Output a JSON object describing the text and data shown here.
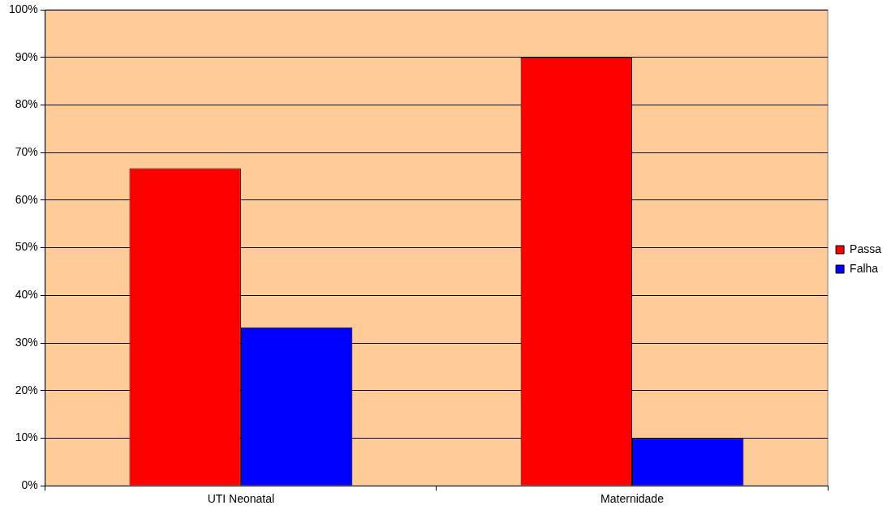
{
  "chart_data": {
    "type": "bar",
    "categories": [
      "UTI Neonatal",
      "Maternidade"
    ],
    "series": [
      {
        "name": "Passa",
        "color": "#ff0000",
        "values": [
          66.7,
          90
        ]
      },
      {
        "name": "Falha",
        "color": "#0000ff",
        "values": [
          33.3,
          10
        ]
      }
    ],
    "ylim": [
      0,
      100
    ],
    "yticks": [
      {
        "value": 0,
        "label": "0%"
      },
      {
        "value": 10,
        "label": "10%"
      },
      {
        "value": 20,
        "label": "20%"
      },
      {
        "value": 30,
        "label": "30%"
      },
      {
        "value": 40,
        "label": "40%"
      },
      {
        "value": 50,
        "label": "50%"
      },
      {
        "value": 60,
        "label": "60%"
      },
      {
        "value": 70,
        "label": "70%"
      },
      {
        "value": 80,
        "label": "80%"
      },
      {
        "value": 90,
        "label": "90%"
      },
      {
        "value": 100,
        "label": "100%"
      }
    ],
    "grid": "y",
    "legend": "right"
  }
}
